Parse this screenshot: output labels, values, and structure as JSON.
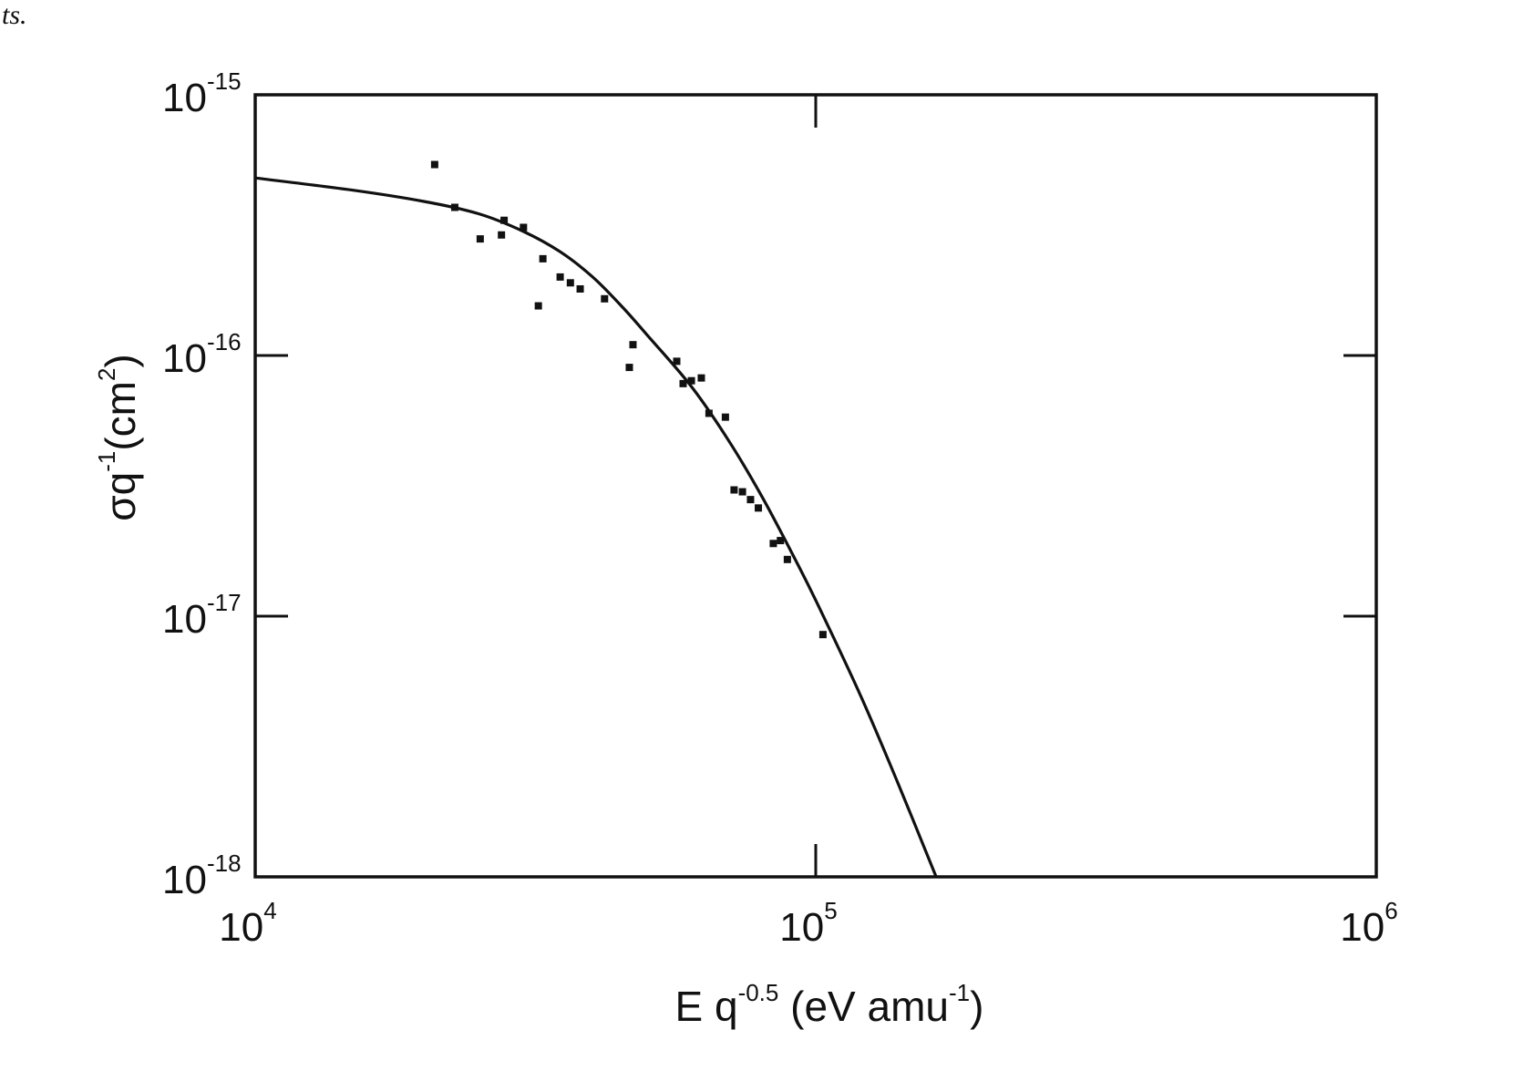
{
  "page_fragment": "ts.",
  "chart_data": {
    "type": "scatter",
    "title": "",
    "x_scale": "log",
    "y_scale": "log",
    "xlim": [
      10000,
      1000000
    ],
    "ylim": [
      1e-18,
      1e-15
    ],
    "grid": false,
    "legend": "none",
    "xlabel": {
      "main": "E q",
      "exp": "-0.5",
      "unit": " (eV amu",
      "unit_exp": "-1",
      "close": ")"
    },
    "ylabel": {
      "main": "σq",
      "exp": "-1",
      "unit": "(cm",
      "unit_exp": "2",
      "close": ")"
    },
    "x_ticks": [
      {
        "value": 10000,
        "base": "10",
        "exp": "4"
      },
      {
        "value": 100000,
        "base": "10",
        "exp": "5"
      },
      {
        "value": 1000000,
        "base": "10",
        "exp": "6"
      }
    ],
    "y_ticks": [
      {
        "value": 1e-15,
        "base": "10",
        "exp": "-15"
      },
      {
        "value": 1e-16,
        "base": "10",
        "exp": "-16"
      },
      {
        "value": 1e-17,
        "base": "10",
        "exp": "-17"
      },
      {
        "value": 1e-18,
        "base": "10",
        "exp": "-18"
      }
    ],
    "series": [
      {
        "kind": "points",
        "x": [
          20900,
          22700,
          25200,
          27800,
          27500,
          30100,
          32600,
          32000,
          35000,
          36500,
          38000,
          42000,
          46500,
          47200,
          56500,
          58000,
          60000,
          62500,
          64500,
          69000,
          71500,
          74000,
          76500,
          79000,
          84000,
          86500,
          89000,
          103000
        ],
        "y": [
          5.4e-16,
          3.7e-16,
          2.8e-16,
          3.3e-16,
          2.9e-16,
          3.1e-16,
          2.35e-16,
          1.55e-16,
          2e-16,
          1.9e-16,
          1.8e-16,
          1.65e-16,
          9e-17,
          1.1e-16,
          9.5e-17,
          7.8e-17,
          8e-17,
          8.2e-17,
          6e-17,
          5.8e-17,
          3.05e-17,
          3e-17,
          2.8e-17,
          2.6e-17,
          1.9e-17,
          1.95e-17,
          1.65e-17,
          8.5e-18
        ],
        "color": "#111111"
      },
      {
        "kind": "curve",
        "x": [
          10000,
          15000,
          20000,
          25000,
          30000,
          35000,
          40000,
          45000,
          50000,
          60000,
          70000,
          80000,
          90000,
          100000,
          120000,
          140000,
          164000
        ],
        "y": [
          4.8e-16,
          4.3e-16,
          3.9e-16,
          3.5e-16,
          3e-16,
          2.5e-16,
          2e-16,
          1.55e-16,
          1.2e-16,
          7.6e-17,
          4.7e-17,
          2.9e-17,
          1.8e-17,
          1.15e-17,
          5e-18,
          2.3e-18,
          1e-18
        ],
        "color": "#111111"
      }
    ]
  }
}
